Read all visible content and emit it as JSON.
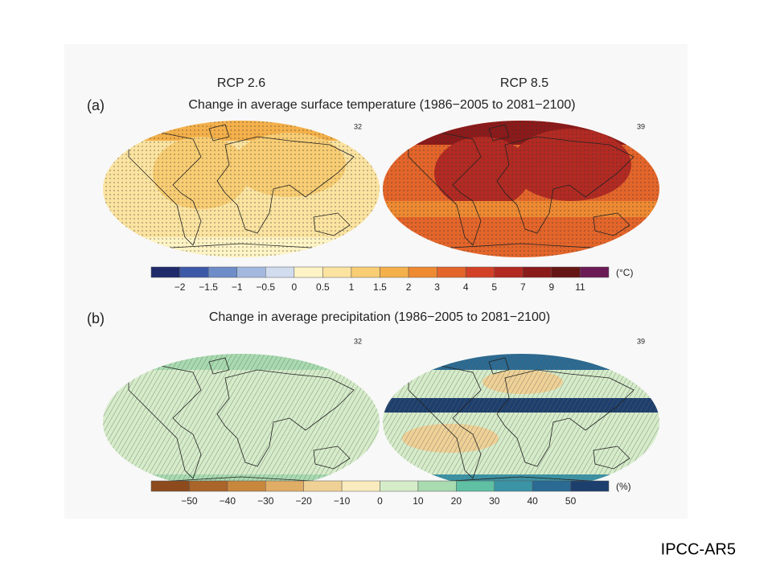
{
  "panel_a": {
    "label": "(a)",
    "scenario_left": "RCP 2.6",
    "scenario_right": "RCP 8.5",
    "title": "Change in average surface temperature (1986−2005 to 2081−2100)",
    "model_count_left": "32",
    "model_count_right": "39",
    "colorbar": {
      "unit": "(°C)",
      "labels": [
        "−2",
        "−1.5",
        "−1",
        "−0.5",
        "0",
        "0.5",
        "1",
        "1.5",
        "2",
        "3",
        "4",
        "5",
        "7",
        "9",
        "11"
      ],
      "colors": [
        "#1f2a6b",
        "#3e58a8",
        "#6d8cc8",
        "#a3b8de",
        "#d2dcef",
        "#fdf3c4",
        "#fbe3a0",
        "#f8cd73",
        "#f4b04a",
        "#ee8a32",
        "#e4652a",
        "#d24127",
        "#b22a22",
        "#8b1a1a",
        "#661515",
        "#6b1a55"
      ]
    }
  },
  "panel_b": {
    "label": "(b)",
    "title": "Change in average precipitation (1986−2005 to 2081−2100)",
    "model_count_left": "32",
    "model_count_right": "39",
    "colorbar": {
      "unit": "(%)",
      "labels": [
        "−50",
        "−40",
        "−30",
        "−20",
        "−10",
        "0",
        "10",
        "20",
        "30",
        "40",
        "50"
      ],
      "colors": [
        "#8c4a1d",
        "#a9652a",
        "#c7873d",
        "#e0ad66",
        "#efd196",
        "#f9ebbd",
        "#d5ecc9",
        "#a8dbb0",
        "#5fc0a3",
        "#3a94a6",
        "#2a6a93",
        "#1d3f6e"
      ]
    }
  },
  "footer": {
    "source": "IPCC-AR5"
  }
}
